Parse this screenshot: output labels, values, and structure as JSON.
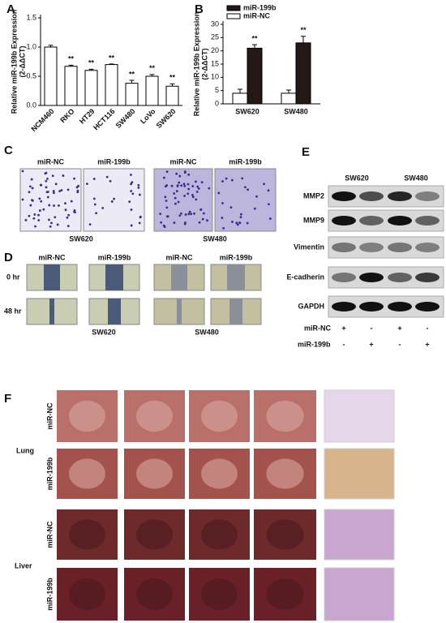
{
  "chart_data": [
    {
      "type": "bar",
      "panel": "A",
      "y_label": "Relative miR-199b Expression",
      "y_label_unit": "(2-ΔΔCT)",
      "categories": [
        "NCM460",
        "RKO",
        "HT29",
        "HCT116",
        "SW480",
        "LoVo",
        "SW620"
      ],
      "values": [
        1.0,
        0.67,
        0.6,
        0.7,
        0.38,
        0.5,
        0.33
      ],
      "errors": [
        0.03,
        0.02,
        0.02,
        0.01,
        0.05,
        0.03,
        0.04
      ],
      "significance": [
        null,
        "**",
        "**",
        "**",
        "**",
        "**",
        "**"
      ],
      "color": "#ffffff",
      "ylim": [
        0,
        1.5
      ],
      "yticks": [
        {
          "value": 0,
          "label": "0.0"
        },
        0.5,
        {
          "value": 1,
          "label": "1.0"
        },
        1.5
      ]
    },
    {
      "type": "bar",
      "panel": "B",
      "y_label": "Relative miR-199b Expression",
      "y_label_unit": "(2-ΔΔCT)",
      "categories": [
        "SW620",
        "SW480"
      ],
      "series": [
        {
          "name": "miR-199b",
          "color": "#231815",
          "values": [
            21,
            23
          ],
          "errors": [
            1.3,
            2.5
          ],
          "significance": [
            "**",
            "**"
          ]
        },
        {
          "name": "miR-NC",
          "color": "#ffffff",
          "values": [
            4,
            4
          ],
          "errors": [
            1.5,
            1.2
          ]
        }
      ],
      "ylim": [
        0,
        30
      ],
      "yticks": [
        0,
        5,
        10,
        15,
        20,
        25,
        30
      ],
      "legend": "top-left"
    }
  ],
  "panel_c": {
    "letter": "C",
    "groups": [
      "miR-NC",
      "miR-199b",
      "miR-NC",
      "miR-199b"
    ],
    "cell_lines": [
      "SW620",
      "SW480"
    ]
  },
  "panel_d": {
    "letter": "D",
    "groups": [
      "miR-NC",
      "miR-199b",
      "miR-NC",
      "miR-199b"
    ],
    "times": [
      "0 hr",
      "48 hr"
    ],
    "cell_lines": [
      "SW620",
      "SW480"
    ]
  },
  "panel_e": {
    "letter": "E",
    "cell_lines": [
      "SW620",
      "SW480"
    ],
    "proteins": [
      "MMP2",
      "MMP9",
      "Vimentin",
      "E-cadherin",
      "GAPDH"
    ],
    "treatments": [
      {
        "name": "miR-NC",
        "signs": [
          "+",
          "-",
          "+",
          "-"
        ]
      },
      {
        "name": "miR-199b",
        "signs": [
          "-",
          "+",
          "-",
          "+"
        ]
      }
    ]
  },
  "panel_f": {
    "letter": "F",
    "tissues": [
      "Lung",
      "Liver"
    ],
    "groups": [
      "miR-NC",
      "miR-199b"
    ]
  }
}
